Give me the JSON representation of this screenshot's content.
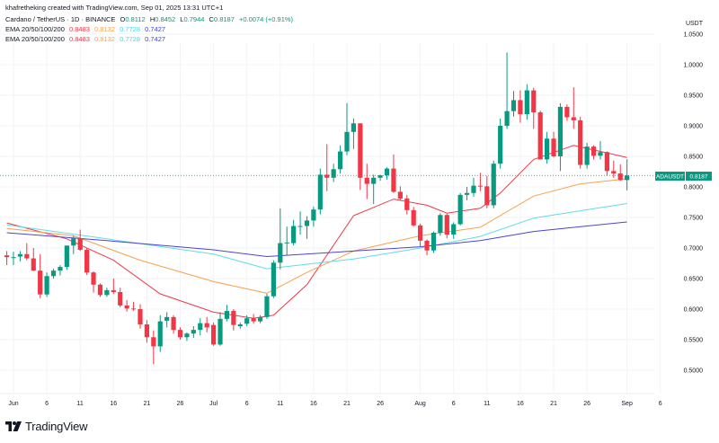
{
  "header": {
    "credit": "khafretheking created with TradingView.com, Sep 01, 2025 13:31 UTC+1",
    "symbol_line": "Cardano / TetherUS · 1D · BINANCE",
    "ohlc": {
      "o_label": "O",
      "o": "0.8112",
      "h_label": "H",
      "h": "0.8452",
      "l_label": "L",
      "l": "0.7944",
      "c_label": "C",
      "c": "0.8187",
      "change": "+0.0074 (+0.91%)"
    },
    "ema_rows": [
      {
        "label": "EMA 20/50/100/200",
        "v20": "0.8483",
        "v50": "0.8132",
        "v100": "0.7728",
        "v200": "0.7427"
      },
      {
        "label": "EMA 20/50/100/200",
        "v20": "0.8483",
        "v50": "0.8132",
        "v100": "0.7728",
        "v200": "0.7427"
      }
    ]
  },
  "currency": "USDT",
  "last_price_label": {
    "symbol": "ADAUSDT",
    "price": "0.8187"
  },
  "brand": "TradingView",
  "colors": {
    "up": "#089981",
    "down": "#f23645",
    "ema20": "#f23645",
    "ema50": "#f7a14a",
    "ema100": "#5fdcea",
    "ema200": "#4b44d6",
    "text": "#131722"
  },
  "chart_data": {
    "type": "candlestick",
    "title": "Cardano / TetherUS · 1D · BINANCE",
    "ylim": [
      0.48,
      1.06
    ],
    "grid": true,
    "price_ticks": [
      "1.0500",
      "1.0000",
      "0.9500",
      "0.9000",
      "0.8500",
      "0.8000",
      "0.7500",
      "0.7000",
      "0.6500",
      "0.6000",
      "0.5500",
      "0.5000"
    ],
    "time_ticks": [
      {
        "label": "Jun",
        "date": "2025-06-01"
      },
      {
        "label": "6",
        "date": "2025-06-06"
      },
      {
        "label": "11",
        "date": "2025-06-11"
      },
      {
        "label": "16",
        "date": "2025-06-16"
      },
      {
        "label": "21",
        "date": "2025-06-21"
      },
      {
        "label": "26",
        "date": "2025-06-26"
      },
      {
        "label": "Jul",
        "date": "2025-07-01"
      },
      {
        "label": "6",
        "date": "2025-07-06"
      },
      {
        "label": "11",
        "date": "2025-07-11"
      },
      {
        "label": "16",
        "date": "2025-07-16"
      },
      {
        "label": "21",
        "date": "2025-07-21"
      },
      {
        "label": "26",
        "date": "2025-07-26"
      },
      {
        "label": "Aug",
        "date": "2025-08-01"
      },
      {
        "label": "6",
        "date": "2025-08-06"
      },
      {
        "label": "11",
        "date": "2025-08-11"
      },
      {
        "label": "16",
        "date": "2025-08-16"
      },
      {
        "label": "21",
        "date": "2025-08-21"
      },
      {
        "label": "26",
        "date": "2025-08-26"
      },
      {
        "label": "Sep",
        "date": "2025-09-01"
      },
      {
        "label": "6",
        "date": "2025-09-06"
      }
    ],
    "candles_columns": [
      "date",
      "open",
      "high",
      "low",
      "close"
    ],
    "candles": [
      [
        "2025-05-31",
        0.688,
        0.695,
        0.672,
        0.685
      ],
      [
        "2025-06-01",
        0.685,
        0.694,
        0.672,
        0.685
      ],
      [
        "2025-06-02",
        0.686,
        0.695,
        0.678,
        0.69
      ],
      [
        "2025-06-03",
        0.69,
        0.708,
        0.68,
        0.683
      ],
      [
        "2025-06-04",
        0.683,
        0.7,
        0.662,
        0.663
      ],
      [
        "2025-06-05",
        0.663,
        0.69,
        0.618,
        0.624
      ],
      [
        "2025-06-06",
        0.624,
        0.66,
        0.62,
        0.654
      ],
      [
        "2025-06-07",
        0.654,
        0.666,
        0.65,
        0.663
      ],
      [
        "2025-06-08",
        0.663,
        0.672,
        0.655,
        0.669
      ],
      [
        "2025-06-09",
        0.669,
        0.7,
        0.664,
        0.704
      ],
      [
        "2025-06-10",
        0.704,
        0.72,
        0.69,
        0.716
      ],
      [
        "2025-06-11",
        0.716,
        0.73,
        0.695,
        0.697
      ],
      [
        "2025-06-12",
        0.697,
        0.7,
        0.656,
        0.66
      ],
      [
        "2025-06-13",
        0.66,
        0.662,
        0.627,
        0.64
      ],
      [
        "2025-06-14",
        0.64,
        0.642,
        0.62,
        0.623
      ],
      [
        "2025-06-15",
        0.623,
        0.635,
        0.62,
        0.631
      ],
      [
        "2025-06-16",
        0.631,
        0.65,
        0.625,
        0.628
      ],
      [
        "2025-06-17",
        0.628,
        0.635,
        0.603,
        0.606
      ],
      [
        "2025-06-18",
        0.606,
        0.615,
        0.596,
        0.601
      ],
      [
        "2025-06-19",
        0.601,
        0.612,
        0.597,
        0.6
      ],
      [
        "2025-06-20",
        0.6,
        0.608,
        0.568,
        0.575
      ],
      [
        "2025-06-21",
        0.575,
        0.582,
        0.545,
        0.554
      ],
      [
        "2025-06-22",
        0.554,
        0.565,
        0.51,
        0.539
      ],
      [
        "2025-06-23",
        0.539,
        0.59,
        0.53,
        0.58
      ],
      [
        "2025-06-24",
        0.581,
        0.595,
        0.57,
        0.587
      ],
      [
        "2025-06-25",
        0.587,
        0.59,
        0.56,
        0.566
      ],
      [
        "2025-06-26",
        0.566,
        0.57,
        0.55,
        0.554
      ],
      [
        "2025-06-27",
        0.554,
        0.562,
        0.548,
        0.56
      ],
      [
        "2025-06-28",
        0.56,
        0.572,
        0.553,
        0.566
      ],
      [
        "2025-06-29",
        0.566,
        0.585,
        0.557,
        0.577
      ],
      [
        "2025-06-30",
        0.577,
        0.587,
        0.562,
        0.57
      ],
      [
        "2025-07-01",
        0.574,
        0.578,
        0.54,
        0.542
      ],
      [
        "2025-07-02",
        0.542,
        0.595,
        0.54,
        0.584
      ],
      [
        "2025-07-03",
        0.584,
        0.607,
        0.58,
        0.597
      ],
      [
        "2025-07-04",
        0.597,
        0.6,
        0.565,
        0.574
      ],
      [
        "2025-07-05",
        0.572,
        0.578,
        0.568,
        0.575
      ],
      [
        "2025-07-06",
        0.576,
        0.59,
        0.572,
        0.585
      ],
      [
        "2025-07-07",
        0.585,
        0.592,
        0.576,
        0.58
      ],
      [
        "2025-07-08",
        0.58,
        0.59,
        0.577,
        0.587
      ],
      [
        "2025-07-09",
        0.587,
        0.625,
        0.584,
        0.621
      ],
      [
        "2025-07-10",
        0.621,
        0.68,
        0.618,
        0.676
      ],
      [
        "2025-07-11",
        0.676,
        0.765,
        0.665,
        0.708
      ],
      [
        "2025-07-12",
        0.708,
        0.735,
        0.688,
        0.709
      ],
      [
        "2025-07-13",
        0.708,
        0.746,
        0.704,
        0.736
      ],
      [
        "2025-07-14",
        0.736,
        0.76,
        0.722,
        0.736
      ],
      [
        "2025-07-15",
        0.736,
        0.752,
        0.715,
        0.745
      ],
      [
        "2025-07-16",
        0.745,
        0.768,
        0.735,
        0.763
      ],
      [
        "2025-07-17",
        0.763,
        0.83,
        0.755,
        0.82
      ],
      [
        "2025-07-18",
        0.82,
        0.87,
        0.793,
        0.815
      ],
      [
        "2025-07-19",
        0.815,
        0.838,
        0.808,
        0.829
      ],
      [
        "2025-07-20",
        0.829,
        0.868,
        0.822,
        0.858
      ],
      [
        "2025-07-21",
        0.858,
        0.937,
        0.852,
        0.89
      ],
      [
        "2025-07-22",
        0.89,
        0.912,
        0.862,
        0.904
      ],
      [
        "2025-07-23",
        0.904,
        0.904,
        0.795,
        0.815
      ],
      [
        "2025-07-24",
        0.815,
        0.838,
        0.78,
        0.805
      ],
      [
        "2025-07-25",
        0.805,
        0.82,
        0.772,
        0.815
      ],
      [
        "2025-07-26",
        0.815,
        0.82,
        0.81,
        0.819
      ],
      [
        "2025-07-27",
        0.819,
        0.832,
        0.812,
        0.83
      ],
      [
        "2025-07-28",
        0.83,
        0.853,
        0.79,
        0.792
      ],
      [
        "2025-07-29",
        0.792,
        0.801,
        0.778,
        0.781
      ],
      [
        "2025-07-30",
        0.781,
        0.787,
        0.755,
        0.762
      ],
      [
        "2025-07-31",
        0.762,
        0.767,
        0.735,
        0.737
      ],
      [
        "2025-08-01",
        0.737,
        0.74,
        0.702,
        0.712
      ],
      [
        "2025-08-02",
        0.712,
        0.714,
        0.688,
        0.696
      ],
      [
        "2025-08-03",
        0.696,
        0.727,
        0.692,
        0.725
      ],
      [
        "2025-08-04",
        0.725,
        0.757,
        0.72,
        0.754
      ],
      [
        "2025-08-05",
        0.754,
        0.756,
        0.716,
        0.722
      ],
      [
        "2025-08-06",
        0.722,
        0.742,
        0.715,
        0.739
      ],
      [
        "2025-08-07",
        0.739,
        0.79,
        0.737,
        0.787
      ],
      [
        "2025-08-08",
        0.787,
        0.8,
        0.778,
        0.79
      ],
      [
        "2025-08-09",
        0.79,
        0.815,
        0.784,
        0.802
      ],
      [
        "2025-08-10",
        0.802,
        0.823,
        0.793,
        0.801
      ],
      [
        "2025-08-11",
        0.801,
        0.818,
        0.765,
        0.77
      ],
      [
        "2025-08-12",
        0.77,
        0.843,
        0.765,
        0.838
      ],
      [
        "2025-08-13",
        0.838,
        0.912,
        0.83,
        0.9
      ],
      [
        "2025-08-14",
        0.9,
        1.02,
        0.895,
        0.924
      ],
      [
        "2025-08-15",
        0.924,
        0.957,
        0.915,
        0.942
      ],
      [
        "2025-08-16",
        0.942,
        0.958,
        0.905,
        0.919
      ],
      [
        "2025-08-17",
        0.919,
        0.968,
        0.91,
        0.958
      ],
      [
        "2025-08-18",
        0.958,
        0.962,
        0.895,
        0.922
      ],
      [
        "2025-08-19",
        0.922,
        0.925,
        0.845,
        0.845
      ],
      [
        "2025-08-20",
        0.845,
        0.89,
        0.838,
        0.879
      ],
      [
        "2025-08-21",
        0.879,
        0.89,
        0.848,
        0.85
      ],
      [
        "2025-08-22",
        0.85,
        0.937,
        0.826,
        0.931
      ],
      [
        "2025-08-23",
        0.931,
        0.935,
        0.908,
        0.914
      ],
      [
        "2025-08-24",
        0.914,
        0.963,
        0.895,
        0.909
      ],
      [
        "2025-08-25",
        0.909,
        0.915,
        0.83,
        0.836
      ],
      [
        "2025-08-26",
        0.836,
        0.872,
        0.83,
        0.866
      ],
      [
        "2025-08-27",
        0.866,
        0.868,
        0.845,
        0.851
      ],
      [
        "2025-08-28",
        0.851,
        0.875,
        0.845,
        0.857
      ],
      [
        "2025-08-29",
        0.857,
        0.858,
        0.818,
        0.826
      ],
      [
        "2025-08-30",
        0.826,
        0.843,
        0.815,
        0.822
      ],
      [
        "2025-08-31",
        0.822,
        0.837,
        0.81,
        0.811
      ],
      [
        "2025-09-01",
        0.8112,
        0.8452,
        0.7944,
        0.8187
      ]
    ],
    "series": [
      {
        "name": "EMA 20",
        "color_key": "ema20",
        "points": [
          [
            "2025-05-31",
            0.741
          ],
          [
            "2025-06-09",
            0.715
          ],
          [
            "2025-06-16",
            0.68
          ],
          [
            "2025-06-23",
            0.625
          ],
          [
            "2025-07-01",
            0.595
          ],
          [
            "2025-07-07",
            0.585
          ],
          [
            "2025-07-10",
            0.59
          ],
          [
            "2025-07-15",
            0.64
          ],
          [
            "2025-07-22",
            0.753
          ],
          [
            "2025-07-28",
            0.78
          ],
          [
            "2025-08-02",
            0.77
          ],
          [
            "2025-08-05",
            0.757
          ],
          [
            "2025-08-10",
            0.765
          ],
          [
            "2025-08-13",
            0.79
          ],
          [
            "2025-08-18",
            0.845
          ],
          [
            "2025-08-24",
            0.868
          ],
          [
            "2025-09-01",
            0.8483
          ]
        ]
      },
      {
        "name": "EMA 50",
        "color_key": "ema50",
        "points": [
          [
            "2025-05-31",
            0.732
          ],
          [
            "2025-06-10",
            0.72
          ],
          [
            "2025-06-20",
            0.68
          ],
          [
            "2025-07-01",
            0.645
          ],
          [
            "2025-07-09",
            0.626
          ],
          [
            "2025-07-15",
            0.66
          ],
          [
            "2025-07-22",
            0.695
          ],
          [
            "2025-08-01",
            0.72
          ],
          [
            "2025-08-10",
            0.734
          ],
          [
            "2025-08-18",
            0.785
          ],
          [
            "2025-08-25",
            0.805
          ],
          [
            "2025-09-01",
            0.8132
          ]
        ]
      },
      {
        "name": "EMA 100",
        "color_key": "ema100",
        "points": [
          [
            "2025-05-31",
            0.738
          ],
          [
            "2025-06-15",
            0.715
          ],
          [
            "2025-07-01",
            0.69
          ],
          [
            "2025-07-09",
            0.666
          ],
          [
            "2025-07-22",
            0.682
          ],
          [
            "2025-08-01",
            0.7
          ],
          [
            "2025-08-10",
            0.719
          ],
          [
            "2025-08-18",
            0.749
          ],
          [
            "2025-09-01",
            0.7728
          ]
        ]
      },
      {
        "name": "EMA 200",
        "color_key": "ema200",
        "points": [
          [
            "2025-05-31",
            0.725
          ],
          [
            "2025-06-15",
            0.712
          ],
          [
            "2025-07-01",
            0.697
          ],
          [
            "2025-07-09",
            0.686
          ],
          [
            "2025-08-01",
            0.702
          ],
          [
            "2025-08-10",
            0.712
          ],
          [
            "2025-08-18",
            0.727
          ],
          [
            "2025-09-01",
            0.7427
          ]
        ]
      }
    ]
  }
}
